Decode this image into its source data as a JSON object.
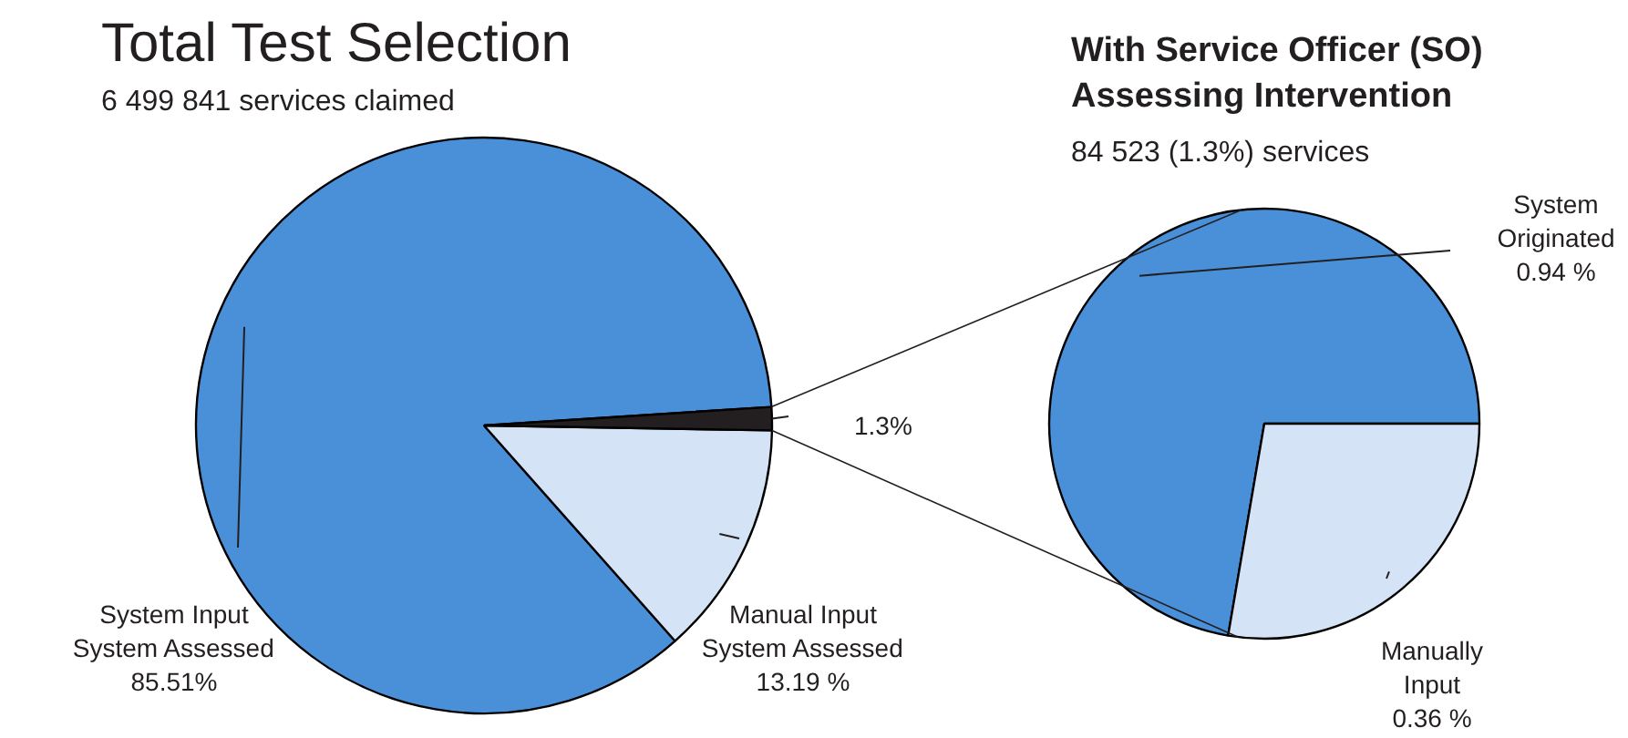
{
  "chart_data": [
    {
      "type": "pie",
      "title": "Total Test Selection",
      "subtitle": "6 499 841 services claimed",
      "categories": [
        "System Input\nSystem Assessed",
        "Manual Input\nSystem Assessed",
        null
      ],
      "values": [
        85.51,
        13.19,
        1.3
      ],
      "colors": [
        "#4a90d9",
        "#d4e3f5",
        "#231f20"
      ],
      "value_labels": [
        "85.51%",
        "13.19 %",
        "1.3%"
      ]
    },
    {
      "type": "pie",
      "title": "With Service Officer (SO)\nAssessing Intervention",
      "subtitle": "84 523 (1.3%)  services",
      "categories": [
        "System\nOriginated",
        "Manually\nInput"
      ],
      "values": [
        0.94,
        0.36
      ],
      "colors": [
        "#4a90d9",
        "#d4e3f5"
      ],
      "value_labels": [
        "0.94 %",
        "0.36 %"
      ]
    }
  ]
}
